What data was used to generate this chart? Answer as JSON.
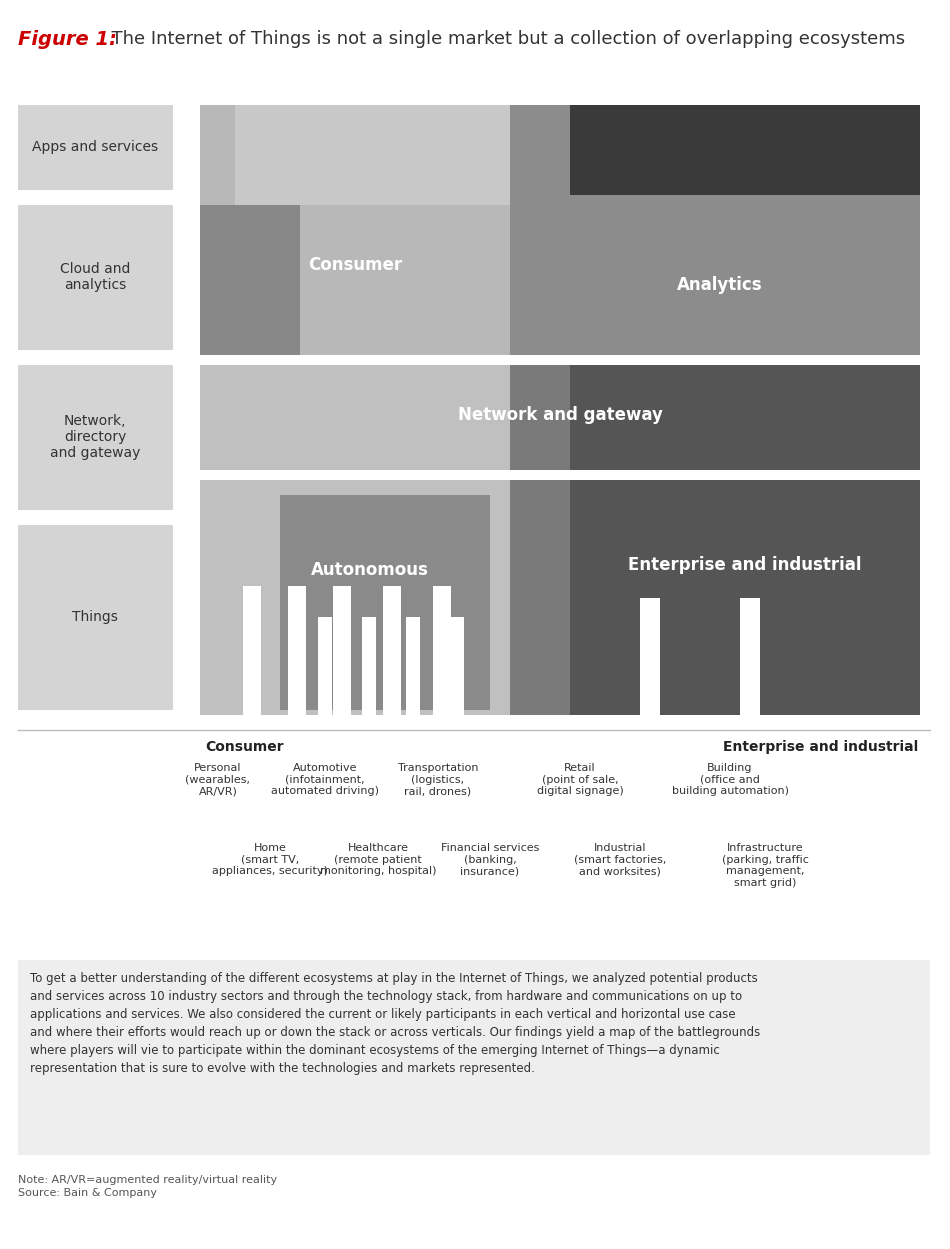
{
  "title_italic": "Figure 1:",
  "title_rest": "  The Internet of Things is not a single market but a collection of overlapping ecosystems",
  "title_color_italic": "#cc0000",
  "title_color_rest": "#333333",
  "bg_color": "#ffffff",
  "note_text": "Note: AR/VR=augmented reality/virtual reality\nSource: Bain & Company",
  "bottom_text": "To get a better understanding of the different ecosystems at play in the Internet of Things, we analyzed potential products\nand services across 10 industry sectors and through the technology stack, from hardware and communications on up to\napplications and services. We also considered the current or likely participants in each vertical and horizontal use case\nand where their efforts would reach up or down the stack or across verticals. Our findings yield a map of the battlegrounds\nwhere players will vie to participate within the dominant ecosystems of the emerging Internet of Things—a dynamic\nrepresentation that is sure to evolve with the technologies and markets represented.",
  "c_bg": "#ffffff",
  "c_left_box": "#d4d4d4",
  "c_analytics_bg": "#8c8c8c",
  "c_network_bg": "#7a7a7a",
  "c_things_bg": "#7a7a7a",
  "c_consumer_block": "#b8b8b8",
  "c_consumer_tab": "#888888",
  "c_enterprise_block": "#555555",
  "c_enterprise_dark": "#3a3a3a",
  "c_autonomous_outer": "#c0c0c0",
  "c_autonomous_inner": "#8a8a8a",
  "c_enterprise_things": "#5a5a5a",
  "c_white": "#ffffff"
}
